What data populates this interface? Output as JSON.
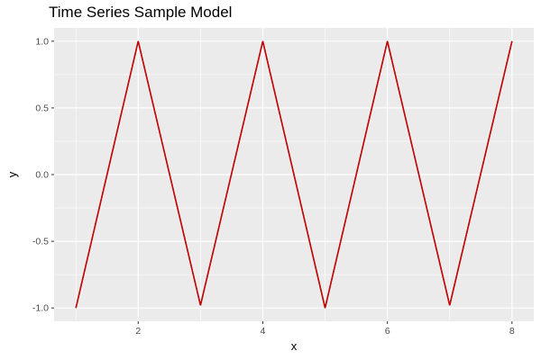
{
  "chart_data": {
    "type": "line",
    "title": "Time Series Sample Model",
    "xlabel": "x",
    "ylabel": "y",
    "x": [
      1,
      2,
      3,
      4,
      5,
      6,
      7,
      8
    ],
    "series": [
      {
        "values": [
          -1.0,
          1.0,
          -0.98,
          1.0,
          -1.0,
          1.0,
          -0.98,
          1.0
        ],
        "color": "#000000"
      },
      {
        "values": [
          -1.0,
          1.0,
          -0.98,
          1.0,
          -1.0,
          1.0,
          -0.98,
          1.0
        ],
        "color": "#cc0000"
      }
    ],
    "xticks": [
      2,
      4,
      6,
      8
    ],
    "xtick_labels": [
      "2",
      "4",
      "6",
      "8"
    ],
    "yticks": [
      -1.0,
      -0.5,
      0.0,
      0.5,
      1.0
    ],
    "ytick_labels": [
      "-1.0",
      "-0.5",
      "0.0",
      "0.5",
      "1.0"
    ],
    "xlim": [
      0.65,
      8.35
    ],
    "ylim": [
      -1.1,
      1.1
    ],
    "grid": true,
    "panel_background": "#ebebeb",
    "gridline_color": "#ffffff"
  }
}
